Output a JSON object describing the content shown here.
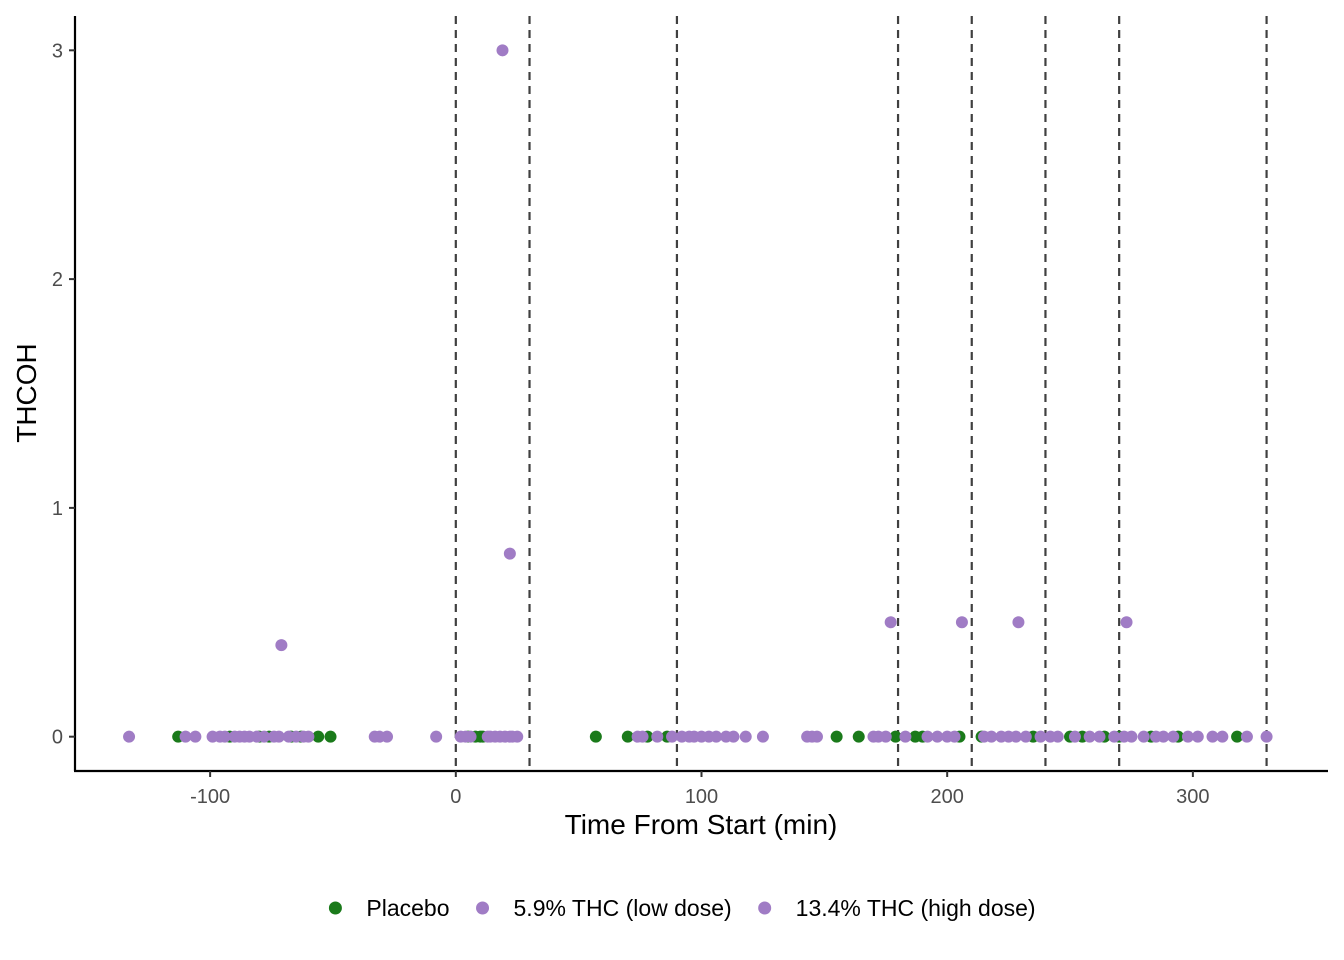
{
  "chart_data": {
    "type": "scatter",
    "xlabel": "Time From Start (min)",
    "ylabel": "THCOH",
    "xlim": [
      -155,
      355
    ],
    "ylim": [
      -0.15,
      3.15
    ],
    "x_ticks": [
      -100,
      0,
      100,
      200,
      300
    ],
    "x_tick_labels": [
      "-100",
      "0",
      "100",
      "200",
      "300"
    ],
    "y_ticks": [
      0,
      1,
      2,
      3
    ],
    "y_tick_labels": [
      "0",
      "1",
      "2",
      "3"
    ],
    "vlines": [
      0,
      30,
      90,
      180,
      210,
      240,
      270,
      330
    ],
    "vline_style": "dashed",
    "grid": false,
    "legend_position": "bottom",
    "series": [
      {
        "name": "Placebo",
        "color": "#1a7a1a",
        "points": [
          [
            -113,
            0
          ],
          [
            -92,
            0
          ],
          [
            -80,
            0
          ],
          [
            -76,
            0
          ],
          [
            -67,
            0
          ],
          [
            -63,
            0
          ],
          [
            -56,
            0
          ],
          [
            -51,
            0
          ],
          [
            5,
            0
          ],
          [
            8,
            0
          ],
          [
            10,
            0
          ],
          [
            11,
            0
          ],
          [
            57,
            0
          ],
          [
            70,
            0
          ],
          [
            78,
            0
          ],
          [
            86,
            0
          ],
          [
            155,
            0
          ],
          [
            164,
            0
          ],
          [
            179,
            0
          ],
          [
            187,
            0
          ],
          [
            190,
            0
          ],
          [
            205,
            0
          ],
          [
            214,
            0
          ],
          [
            235,
            0
          ],
          [
            250,
            0
          ],
          [
            255,
            0
          ],
          [
            264,
            0
          ],
          [
            270,
            0
          ],
          [
            283,
            0
          ],
          [
            294,
            0
          ],
          [
            318,
            0
          ]
        ]
      },
      {
        "name": "5.9% THC (low dose)",
        "color": "#a07cc5",
        "points": [
          [
            -133,
            0
          ],
          [
            -106,
            0
          ],
          [
            -99,
            0
          ],
          [
            -94,
            0
          ],
          [
            -88,
            0
          ],
          [
            -84,
            0
          ],
          [
            -78,
            0
          ],
          [
            -72,
            0
          ],
          [
            -68,
            0
          ],
          [
            -62,
            0
          ],
          [
            -33,
            0
          ],
          [
            -28,
            0
          ],
          [
            -8,
            0
          ],
          [
            4,
            0
          ],
          [
            14,
            0
          ],
          [
            18,
            0
          ],
          [
            22,
            0
          ],
          [
            25,
            0
          ],
          [
            74,
            0
          ],
          [
            82,
            0
          ],
          [
            92,
            0
          ],
          [
            97,
            0
          ],
          [
            103,
            0
          ],
          [
            110,
            0
          ],
          [
            118,
            0
          ],
          [
            125,
            0
          ],
          [
            143,
            0
          ],
          [
            147,
            0
          ],
          [
            170,
            0
          ],
          [
            175,
            0
          ],
          [
            192,
            0
          ],
          [
            200,
            0
          ],
          [
            215,
            0
          ],
          [
            222,
            0
          ],
          [
            228,
            0
          ],
          [
            238,
            0
          ],
          [
            245,
            0
          ],
          [
            258,
            0
          ],
          [
            268,
            0
          ],
          [
            275,
            0
          ],
          [
            288,
            0
          ],
          [
            298,
            0
          ],
          [
            308,
            0
          ],
          [
            330,
            0
          ],
          [
            19,
            3.0
          ],
          [
            -71,
            0.4
          ],
          [
            22,
            0.8
          ],
          [
            177,
            0.5
          ],
          [
            206,
            0.5
          ],
          [
            229,
            0.5
          ],
          [
            273,
            0.5
          ]
        ]
      },
      {
        "name": "13.4% THC (high dose)",
        "color": "#a07cc5",
        "points": [
          [
            -110,
            0
          ],
          [
            -96,
            0
          ],
          [
            -90,
            0
          ],
          [
            -86,
            0
          ],
          [
            -81,
            0
          ],
          [
            -74,
            0
          ],
          [
            -65,
            0
          ],
          [
            -60,
            0
          ],
          [
            -31,
            0
          ],
          [
            2,
            0
          ],
          [
            6,
            0
          ],
          [
            13,
            0
          ],
          [
            16,
            0
          ],
          [
            20,
            0
          ],
          [
            23,
            0
          ],
          [
            76,
            0
          ],
          [
            88,
            0
          ],
          [
            95,
            0
          ],
          [
            100,
            0
          ],
          [
            106,
            0
          ],
          [
            113,
            0
          ],
          [
            145,
            0
          ],
          [
            172,
            0
          ],
          [
            183,
            0
          ],
          [
            196,
            0
          ],
          [
            203,
            0
          ],
          [
            218,
            0
          ],
          [
            225,
            0
          ],
          [
            232,
            0
          ],
          [
            242,
            0
          ],
          [
            252,
            0
          ],
          [
            262,
            0
          ],
          [
            272,
            0
          ],
          [
            280,
            0
          ],
          [
            285,
            0
          ],
          [
            292,
            0
          ],
          [
            302,
            0
          ],
          [
            312,
            0
          ],
          [
            322,
            0
          ]
        ]
      }
    ]
  }
}
